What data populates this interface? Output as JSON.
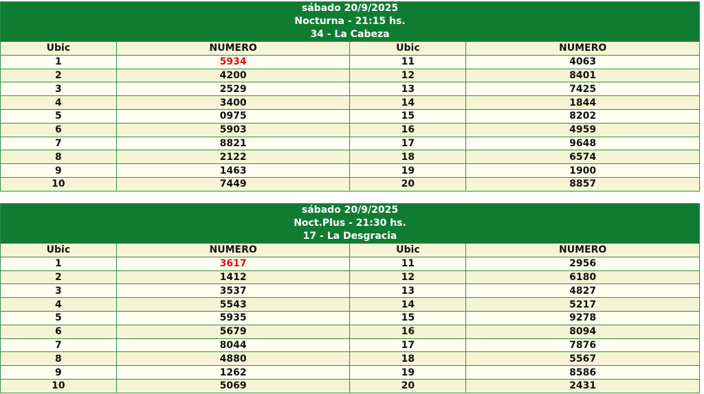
{
  "draws": [
    {
      "date": "sábado 20/9/2025",
      "session": "Nocturna - 21:15 hs.",
      "meaning": "34 - La Cabeza",
      "col_ubic": "Ubic",
      "col_numero": "NUMERO",
      "results": [
        {
          "ubic": "1",
          "numero": "5934"
        },
        {
          "ubic": "2",
          "numero": "4200"
        },
        {
          "ubic": "3",
          "numero": "2529"
        },
        {
          "ubic": "4",
          "numero": "3400"
        },
        {
          "ubic": "5",
          "numero": "0975"
        },
        {
          "ubic": "6",
          "numero": "5903"
        },
        {
          "ubic": "7",
          "numero": "8821"
        },
        {
          "ubic": "8",
          "numero": "2122"
        },
        {
          "ubic": "9",
          "numero": "1463"
        },
        {
          "ubic": "10",
          "numero": "7449"
        },
        {
          "ubic": "11",
          "numero": "4063"
        },
        {
          "ubic": "12",
          "numero": "8401"
        },
        {
          "ubic": "13",
          "numero": "7425"
        },
        {
          "ubic": "14",
          "numero": "1844"
        },
        {
          "ubic": "15",
          "numero": "8202"
        },
        {
          "ubic": "16",
          "numero": "4959"
        },
        {
          "ubic": "17",
          "numero": "9648"
        },
        {
          "ubic": "18",
          "numero": "6574"
        },
        {
          "ubic": "19",
          "numero": "1900"
        },
        {
          "ubic": "20",
          "numero": "8857"
        }
      ]
    },
    {
      "date": "sábado 20/9/2025",
      "session": "Noct.Plus - 21:30 hs.",
      "meaning": "17 - La Desgracia",
      "col_ubic": "Ubic",
      "col_numero": "NUMERO",
      "results": [
        {
          "ubic": "1",
          "numero": "3617"
        },
        {
          "ubic": "2",
          "numero": "1412"
        },
        {
          "ubic": "3",
          "numero": "3537"
        },
        {
          "ubic": "4",
          "numero": "5543"
        },
        {
          "ubic": "5",
          "numero": "5935"
        },
        {
          "ubic": "6",
          "numero": "5679"
        },
        {
          "ubic": "7",
          "numero": "8044"
        },
        {
          "ubic": "8",
          "numero": "4880"
        },
        {
          "ubic": "9",
          "numero": "1262"
        },
        {
          "ubic": "10",
          "numero": "5069"
        },
        {
          "ubic": "11",
          "numero": "2956"
        },
        {
          "ubic": "12",
          "numero": "6180"
        },
        {
          "ubic": "13",
          "numero": "4827"
        },
        {
          "ubic": "14",
          "numero": "5217"
        },
        {
          "ubic": "15",
          "numero": "9278"
        },
        {
          "ubic": "16",
          "numero": "8094"
        },
        {
          "ubic": "17",
          "numero": "7876"
        },
        {
          "ubic": "18",
          "numero": "5567"
        },
        {
          "ubic": "19",
          "numero": "8586"
        },
        {
          "ubic": "20",
          "numero": "2431"
        }
      ]
    }
  ],
  "colors": {
    "header_green": "#107c32",
    "first_prize_red": "#e01010",
    "row_light": "#fffff0",
    "row_dark": "#f5f5d5"
  }
}
